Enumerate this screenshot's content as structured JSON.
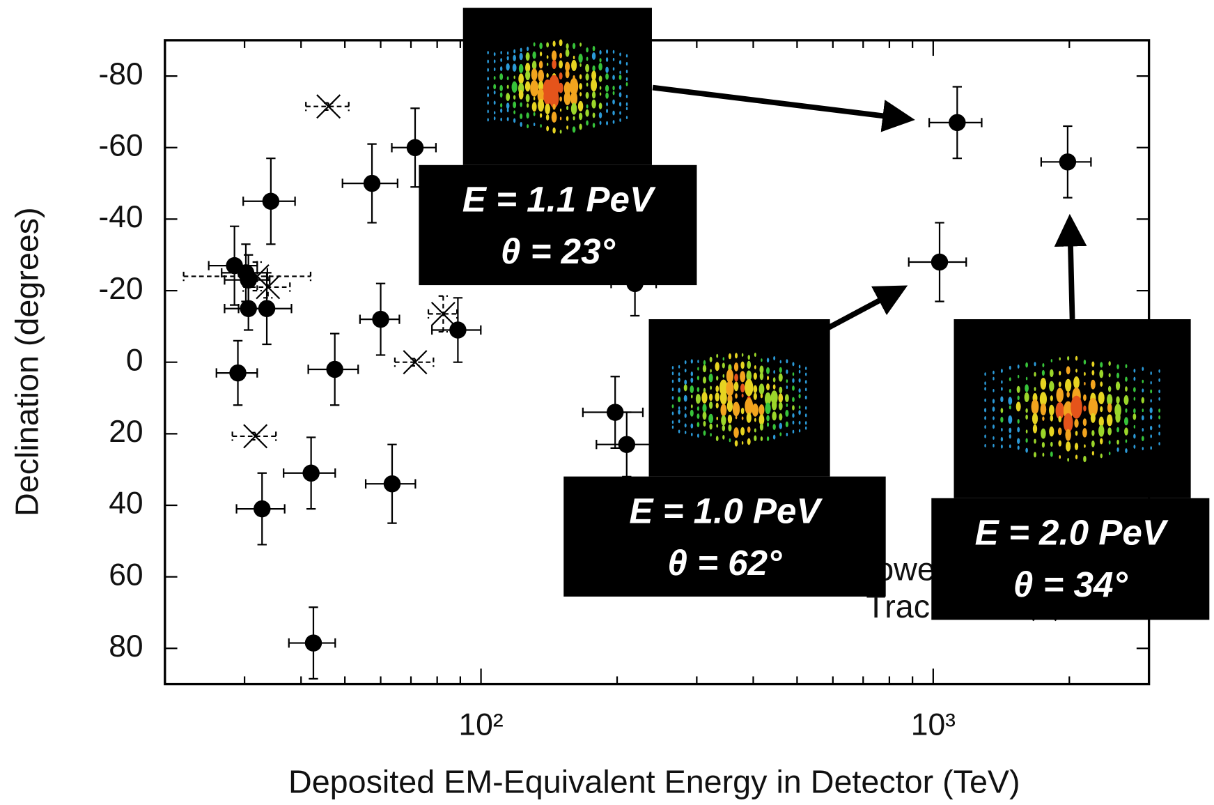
{
  "chart_data": {
    "type": "scatter",
    "x_label": "Deposited EM-Equivalent Energy in Detector (TeV)",
    "y_label": "Declination (degrees)",
    "xlim": [
      20,
      3000
    ],
    "xscale": "log",
    "ylim": [
      -90,
      90
    ],
    "y_inverted": true,
    "xticks": [
      {
        "value": 100,
        "label": "10²"
      },
      {
        "value": 1000,
        "label": "10³"
      }
    ],
    "xminorticks": [
      30,
      40,
      50,
      60,
      70,
      80,
      90,
      200,
      300,
      400,
      500,
      600,
      700,
      800,
      900,
      2000,
      3000
    ],
    "yticks": [
      -80,
      -60,
      -40,
      -20,
      0,
      20,
      40,
      60,
      80
    ],
    "legend": "lower right",
    "series": [
      {
        "name": "Showers",
        "color": "#000000",
        "marker": "circle",
        "x": [
          28.5,
          30.2,
          30.6,
          30.6,
          33.6,
          29,
          34.3,
          42.6,
          42.1,
          32.8,
          47.5,
          57.4,
          71.5,
          60,
          63.6,
          88.9,
          198,
          210,
          219,
          1130,
          1033,
          1983
        ],
        "y": [
          -27,
          -25,
          -23,
          -15,
          -15,
          3,
          -45,
          78.5,
          31,
          41,
          2,
          -50,
          -60,
          -12,
          34,
          -9,
          14,
          23,
          -22,
          -67,
          -28,
          -56
        ],
        "xerr": [
          3.5,
          3.5,
          3.5,
          3.5,
          4.5,
          3,
          4.5,
          5,
          5.5,
          4,
          6,
          8,
          8,
          6,
          8,
          11,
          30,
          30,
          25,
          150,
          150,
          250
        ],
        "yerr": [
          11,
          8,
          7,
          6,
          10,
          9,
          12,
          10,
          10,
          10,
          10,
          11,
          11,
          10,
          11,
          9,
          10,
          9,
          9,
          10,
          11,
          10
        ]
      },
      {
        "name": "Tracks",
        "color": "#000000",
        "marker": "x",
        "x": [
          46,
          31.7,
          71.5,
          82.5,
          32,
          33.8
        ],
        "y": [
          -71.5,
          20.7,
          0,
          -13.5,
          -24,
          -21
        ],
        "xerr": [
          5,
          3.5,
          7,
          6,
          10,
          4
        ],
        "yerr": [
          1,
          1,
          1,
          5,
          4,
          3
        ]
      }
    ],
    "annotations": [
      {
        "energy": "E = 1.1 PeV",
        "angle": "θ = 23°"
      },
      {
        "energy": "E = 1.0 PeV",
        "angle": "θ = 62°"
      },
      {
        "energy": "E = 2.0 PeV",
        "angle": "θ = 34°"
      }
    ]
  }
}
